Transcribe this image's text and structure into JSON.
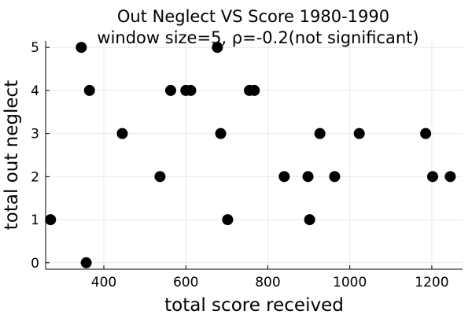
{
  "chart_data": {
    "type": "scatter",
    "title": "Out Neglect VS Score 1980-1990",
    "subtitle": "window size=5, ρ=-0.2(not significant)",
    "xlabel": "total score received",
    "ylabel": "total out neglect",
    "xlim": [
      258,
      1275
    ],
    "ylim": [
      -0.15,
      5.15
    ],
    "xticks": [
      400,
      600,
      800,
      1000,
      1200
    ],
    "yticks": [
      0,
      1,
      2,
      3,
      4,
      5
    ],
    "grid": true,
    "legend": "none",
    "marker_color": "#000000",
    "grid_color": "#e8e8e8",
    "points": [
      {
        "x": 270,
        "y": 1
      },
      {
        "x": 345,
        "y": 5
      },
      {
        "x": 357,
        "y": 0
      },
      {
        "x": 365,
        "y": 4
      },
      {
        "x": 445,
        "y": 3
      },
      {
        "x": 537,
        "y": 2
      },
      {
        "x": 563,
        "y": 4
      },
      {
        "x": 600,
        "y": 4
      },
      {
        "x": 612,
        "y": 4
      },
      {
        "x": 677,
        "y": 5
      },
      {
        "x": 685,
        "y": 3
      },
      {
        "x": 702,
        "y": 1
      },
      {
        "x": 755,
        "y": 4
      },
      {
        "x": 767,
        "y": 4
      },
      {
        "x": 840,
        "y": 2
      },
      {
        "x": 898,
        "y": 2
      },
      {
        "x": 902,
        "y": 1
      },
      {
        "x": 927,
        "y": 3
      },
      {
        "x": 963,
        "y": 2
      },
      {
        "x": 1023,
        "y": 3
      },
      {
        "x": 1185,
        "y": 3
      },
      {
        "x": 1202,
        "y": 2
      },
      {
        "x": 1245,
        "y": 2
      }
    ]
  }
}
